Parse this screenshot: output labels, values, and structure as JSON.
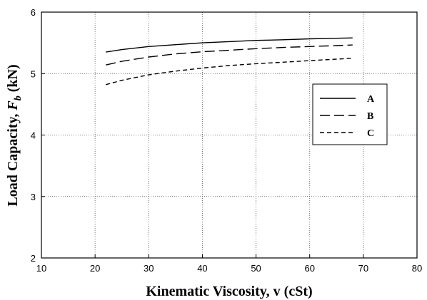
{
  "chart_data": {
    "type": "line",
    "xlabel": "Kinematic Viscosity, v (cSt)",
    "ylabel_prefix": "Load Capacity, ",
    "ylabel_symbol": "F",
    "ylabel_subscript": "b",
    "ylabel_unit": " (kN)",
    "xlim": [
      10,
      80
    ],
    "ylim": [
      2,
      6
    ],
    "xticks": [
      10,
      20,
      30,
      40,
      50,
      60,
      70,
      80
    ],
    "yticks": [
      2,
      3,
      4,
      5,
      6
    ],
    "grid": true,
    "legend_position": "right",
    "series": [
      {
        "name": "A",
        "dash": "solid",
        "x": [
          22,
          25,
          30,
          35,
          40,
          45,
          50,
          55,
          60,
          65,
          68
        ],
        "y": [
          5.35,
          5.39,
          5.44,
          5.47,
          5.5,
          5.52,
          5.54,
          5.55,
          5.565,
          5.575,
          5.58
        ]
      },
      {
        "name": "B",
        "dash": "long-dash",
        "x": [
          22,
          25,
          30,
          35,
          40,
          45,
          50,
          55,
          60,
          65,
          68
        ],
        "y": [
          5.14,
          5.2,
          5.27,
          5.32,
          5.355,
          5.38,
          5.405,
          5.425,
          5.44,
          5.455,
          5.465
        ]
      },
      {
        "name": "C",
        "dash": "short-dash",
        "x": [
          22,
          25,
          30,
          35,
          40,
          45,
          50,
          55,
          60,
          65,
          68
        ],
        "y": [
          4.82,
          4.89,
          4.98,
          5.04,
          5.09,
          5.13,
          5.16,
          5.185,
          5.21,
          5.235,
          5.25
        ]
      }
    ]
  }
}
